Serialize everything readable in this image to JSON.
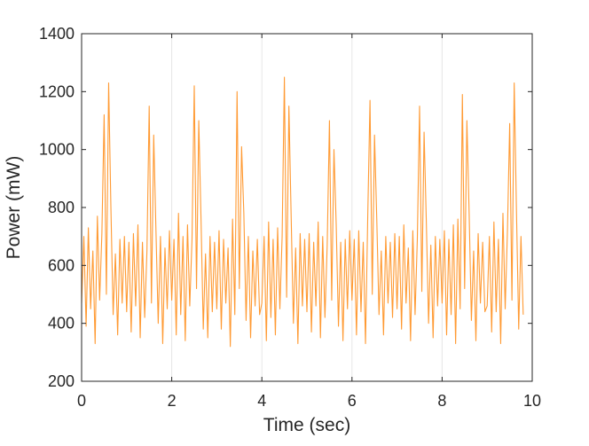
{
  "chart_data": {
    "type": "line",
    "xlabel": "Time (sec)",
    "ylabel": "Power (mW)",
    "xlim": [
      0,
      10
    ],
    "xticks": [
      0,
      2,
      4,
      6,
      8,
      10
    ],
    "ylim": [
      200,
      1400
    ],
    "yticks": [
      200,
      400,
      600,
      800,
      1000,
      1200,
      1400
    ],
    "grid": "x",
    "series": [
      {
        "color": "#ff9a33",
        "x": [
          0,
          0.05,
          0.1,
          0.15,
          0.2,
          0.25,
          0.3,
          0.35,
          0.4,
          0.45,
          0.5,
          0.55,
          0.6,
          0.65,
          0.7,
          0.75,
          0.8,
          0.85,
          0.9,
          0.95,
          1,
          1.05,
          1.1,
          1.15,
          1.2,
          1.25,
          1.3,
          1.35,
          1.4,
          1.45,
          1.5,
          1.55,
          1.6,
          1.65,
          1.7,
          1.75,
          1.8,
          1.85,
          1.9,
          1.95,
          2,
          2.05,
          2.1,
          2.15,
          2.2,
          2.25,
          2.3,
          2.35,
          2.4,
          2.45,
          2.5,
          2.55,
          2.6,
          2.65,
          2.7,
          2.75,
          2.8,
          2.85,
          2.9,
          2.95,
          3,
          3.05,
          3.1,
          3.15,
          3.2,
          3.25,
          3.3,
          3.35,
          3.4,
          3.45,
          3.5,
          3.55,
          3.6,
          3.65,
          3.7,
          3.75,
          3.8,
          3.85,
          3.9,
          3.95,
          4,
          4.05,
          4.1,
          4.15,
          4.2,
          4.25,
          4.3,
          4.35,
          4.4,
          4.45,
          4.5,
          4.55,
          4.6,
          4.65,
          4.7,
          4.75,
          4.8,
          4.85,
          4.9,
          4.95,
          5,
          5.05,
          5.1,
          5.15,
          5.2,
          5.25,
          5.3,
          5.35,
          5.4,
          5.45,
          5.5,
          5.55,
          5.6,
          5.65,
          5.7,
          5.75,
          5.8,
          5.85,
          5.9,
          5.95,
          6,
          6.05,
          6.1,
          6.15,
          6.2,
          6.25,
          6.3,
          6.35,
          6.4,
          6.45,
          6.5,
          6.55,
          6.6,
          6.65,
          6.7,
          6.75,
          6.8,
          6.85,
          6.9,
          6.95,
          7,
          7.05,
          7.1,
          7.15,
          7.2,
          7.25,
          7.3,
          7.35,
          7.4,
          7.45,
          7.5,
          7.55,
          7.6,
          7.65,
          7.7,
          7.75,
          7.8,
          7.85,
          7.9,
          7.95,
          8,
          8.05,
          8.1,
          8.15,
          8.2,
          8.25,
          8.3,
          8.35,
          8.4,
          8.45,
          8.5,
          8.55,
          8.6,
          8.65,
          8.7,
          8.75,
          8.8,
          8.85,
          8.9,
          8.95,
          9,
          9.05,
          9.1,
          9.15,
          9.2,
          9.25,
          9.3,
          9.35,
          9.4,
          9.45,
          9.5,
          9.55,
          9.6,
          9.65,
          9.7,
          9.75,
          9.8
        ],
        "values": [
          470,
          700,
          390,
          730,
          450,
          650,
          330,
          770,
          480,
          710,
          1120,
          500,
          1230,
          800,
          430,
          640,
          360,
          690,
          470,
          700,
          440,
          680,
          370,
          710,
          460,
          740,
          350,
          680,
          420,
          650,
          1150,
          470,
          1050,
          720,
          400,
          700,
          330,
          660,
          450,
          720,
          480,
          690,
          360,
          780,
          430,
          700,
          340,
          740,
          460,
          690,
          1220,
          520,
          1100,
          760,
          380,
          640,
          350,
          700,
          440,
          680,
          450,
          720,
          380,
          690,
          470,
          660,
          320,
          760,
          430,
          1200,
          520,
          1010,
          780,
          410,
          700,
          350,
          650,
          460,
          690,
          430,
          470,
          700,
          340,
          750,
          420,
          690,
          360,
          730,
          450,
          700,
          1250,
          490,
          1150,
          770,
          400,
          660,
          330,
          710,
          460,
          690,
          440,
          710,
          370,
          680,
          460,
          750,
          350,
          700,
          420,
          670,
          1100,
          480,
          1000,
          740,
          390,
          680,
          340,
          690,
          450,
          720,
          480,
          690,
          360,
          720,
          440,
          680,
          330,
          770,
          1170,
          500,
          1050,
          760,
          430,
          650,
          360,
          700,
          470,
          680,
          420,
          710,
          450,
          700,
          380,
          740,
          470,
          660,
          340,
          720,
          430,
          690,
          1150,
          510,
          1060,
          750,
          400,
          670,
          350,
          700,
          460,
          690,
          470,
          720,
          360,
          690,
          430,
          740,
          330,
          760,
          450,
          1190,
          520,
          1100,
          780,
          410,
          650,
          340,
          710,
          470,
          680,
          440,
          460,
          700,
          370,
          750,
          440,
          690,
          330,
          780,
          450,
          720,
          1090,
          480,
          1230,
          790,
          380,
          700,
          430
        ]
      }
    ]
  }
}
